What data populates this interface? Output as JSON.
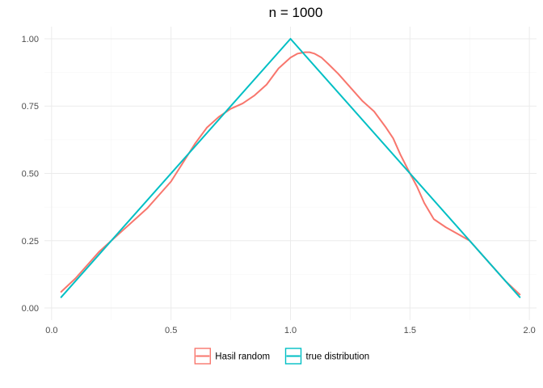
{
  "chart_data": {
    "type": "line",
    "title": "n = 1000",
    "xlabel": "",
    "ylabel": "",
    "xlim": [
      -0.03,
      2.03
    ],
    "ylim": [
      -0.045,
      1.045
    ],
    "x_ticks": [
      0.0,
      0.5,
      1.0,
      1.5,
      2.0
    ],
    "x_tick_labels": [
      "0.0",
      "0.5",
      "1.0",
      "1.5",
      "2.0"
    ],
    "y_ticks": [
      0.0,
      0.25,
      0.5,
      0.75,
      1.0
    ],
    "y_tick_labels": [
      "0.00",
      "0.25",
      "0.50",
      "0.75",
      "1.00"
    ],
    "grid": true,
    "legend_position": "bottom",
    "series": [
      {
        "name": "Hasil random",
        "color": "#F8766D",
        "x": [
          0.04,
          0.1,
          0.15,
          0.2,
          0.25,
          0.3,
          0.35,
          0.4,
          0.45,
          0.5,
          0.55,
          0.6,
          0.65,
          0.7,
          0.75,
          0.8,
          0.85,
          0.9,
          0.95,
          1.0,
          1.03,
          1.06,
          1.08,
          1.1,
          1.13,
          1.16,
          1.2,
          1.25,
          1.3,
          1.35,
          1.4,
          1.43,
          1.46,
          1.5,
          1.53,
          1.56,
          1.6,
          1.65,
          1.7,
          1.75,
          1.8,
          1.85,
          1.9,
          1.96
        ],
        "y": [
          0.06,
          0.11,
          0.16,
          0.21,
          0.25,
          0.29,
          0.33,
          0.37,
          0.42,
          0.47,
          0.54,
          0.61,
          0.67,
          0.71,
          0.74,
          0.76,
          0.79,
          0.83,
          0.89,
          0.93,
          0.945,
          0.95,
          0.95,
          0.945,
          0.93,
          0.905,
          0.87,
          0.82,
          0.77,
          0.73,
          0.67,
          0.63,
          0.57,
          0.5,
          0.45,
          0.39,
          0.33,
          0.3,
          0.275,
          0.25,
          0.2,
          0.15,
          0.1,
          0.05
        ]
      },
      {
        "name": "true distribution",
        "color": "#00BFC4",
        "x": [
          0.04,
          1.0,
          1.96
        ],
        "y": [
          0.04,
          1.0,
          0.04
        ]
      }
    ]
  }
}
